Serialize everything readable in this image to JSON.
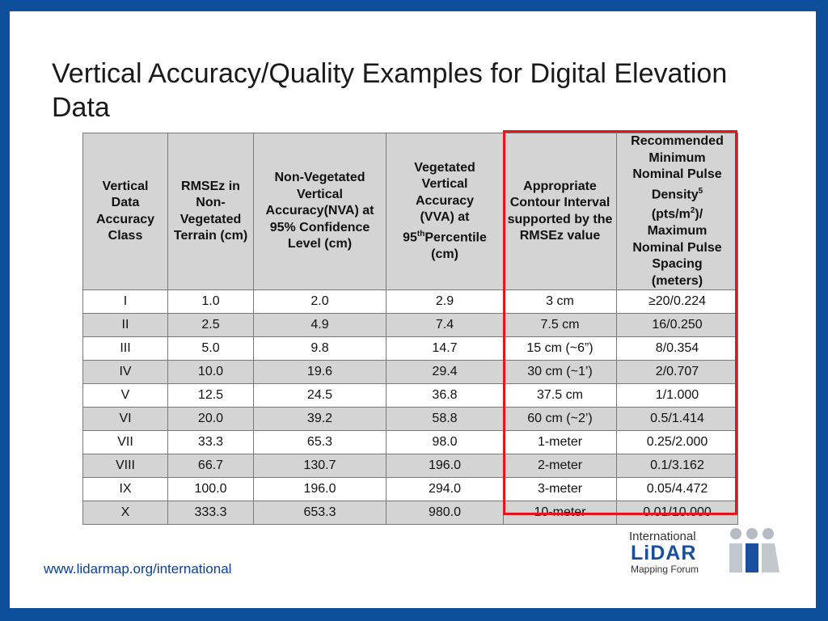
{
  "title": "Vertical Accuracy/Quality Examples for Digital Elevation Data",
  "table": {
    "headers": [
      "Vertical Data Accuracy Class",
      "RMSEz in Non-Vegetated Terrain (cm)",
      "Non-Vegetated Vertical Accuracy(NVA) at 95% Confidence Level (cm)",
      "Vegetated Vertical Accuracy (VVA) at 95th Percentile (cm)",
      "Appropriate Contour Interval supported by the RMSEz value",
      "Recommended Minimum Nominal Pulse Density5 (pts/m2)/ Maximum Nominal Pulse Spacing (meters)"
    ],
    "rows": [
      [
        "I",
        "1.0",
        "2.0",
        "2.9",
        "3 cm",
        "≥20/0.224"
      ],
      [
        "II",
        "2.5",
        "4.9",
        "7.4",
        "7.5 cm",
        "16/0.250"
      ],
      [
        "III",
        "5.0",
        "9.8",
        "14.7",
        "15 cm (~6”)",
        "8/0.354"
      ],
      [
        "IV",
        "10.0",
        "19.6",
        "29.4",
        "30 cm (~1’)",
        "2/0.707"
      ],
      [
        "V",
        "12.5",
        "24.5",
        "36.8",
        "37.5 cm",
        "1/1.000"
      ],
      [
        "VI",
        "20.0",
        "39.2",
        "58.8",
        "60 cm (~2’)",
        "0.5/1.414"
      ],
      [
        "VII",
        "33.3",
        "65.3",
        "98.0",
        "1-meter",
        "0.25/2.000"
      ],
      [
        "VIII",
        "66.7",
        "130.7",
        "196.0",
        "2-meter",
        "0.1/3.162"
      ],
      [
        "IX",
        "100.0",
        "196.0",
        "294.0",
        "3-meter",
        "0.05/4.472"
      ],
      [
        "X",
        "333.3",
        "653.3",
        "980.0",
        "10-meter",
        "0.01/10.000"
      ]
    ]
  },
  "footer": {
    "url": "www.lidarmap.org/international"
  },
  "logo": {
    "line1": "International",
    "line2": "LiDAR",
    "line3": "Mapping Forum"
  },
  "colors": {
    "frame": "#0d4f9a",
    "highlight": "#e8141c",
    "header_bg": "#d4d4d4",
    "url": "#0b3f9a"
  }
}
